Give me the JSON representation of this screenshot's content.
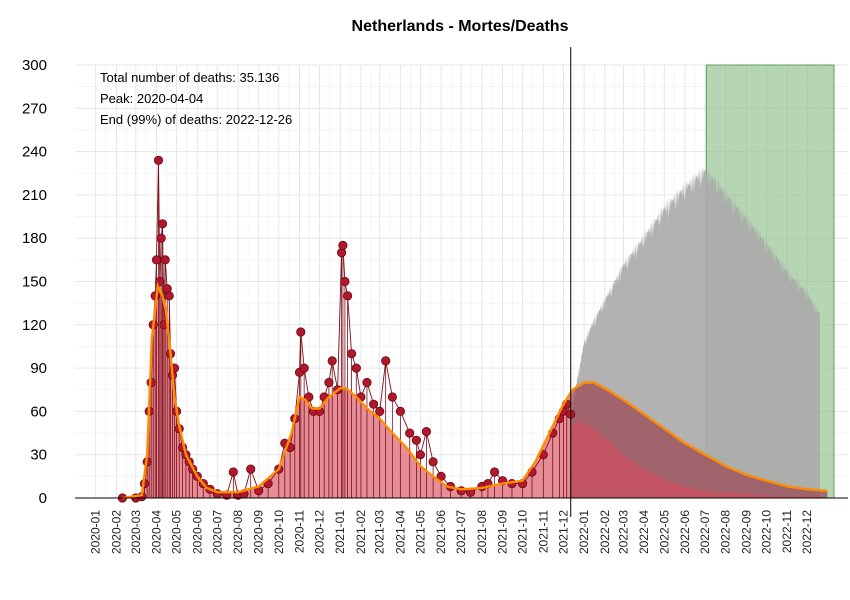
{
  "chart_data": {
    "type": "bar",
    "title": "Netherlands - Mortes/Deaths",
    "xlabel": "",
    "ylabel": "",
    "ylim": [
      0,
      300
    ],
    "yticks": [
      "0",
      "30",
      "60",
      "90",
      "120",
      "150",
      "180",
      "210",
      "240",
      "270",
      "300"
    ],
    "xticks": [
      "2020-01",
      "2020-02",
      "2020-03",
      "2020-04",
      "2020-05",
      "2020-06",
      "2020-07",
      "2020-08",
      "2020-09",
      "2020-10",
      "2020-11",
      "2020-12",
      "2021-01",
      "2021-02",
      "2021-03",
      "2021-04",
      "2021-05",
      "2021-06",
      "2021-07",
      "2021-08",
      "2021-09",
      "2021-10",
      "2021-11",
      "2021-12",
      "2022-01",
      "2022-02",
      "2022-03",
      "2022-04",
      "2022-05",
      "2022-06",
      "2022-07",
      "2022-08",
      "2022-09",
      "2022-10",
      "2022-11",
      "2022-12"
    ],
    "x_domain": [
      "2019-12-01",
      "2023-01-31"
    ],
    "grid": true,
    "annotations": [
      {
        "text": "Total number of deaths: 35.136",
        "color": "#000000"
      },
      {
        "text": "Peak: 2020-04-04",
        "color": "#b2182b"
      },
      {
        "text": "End (99%) of deaths: 2022-12-26",
        "color": "#6aa86a"
      }
    ],
    "today": "2021-12-12",
    "end_region": {
      "start": "2022-07-03",
      "end": "2023-01-10",
      "color": "#8fbf8a"
    },
    "observed_daily_deaths": {
      "color": "#b2182b",
      "points": [
        [
          "2020-02-10",
          0
        ],
        [
          "2020-03-01",
          0
        ],
        [
          "2020-03-10",
          1
        ],
        [
          "2020-03-14",
          10
        ],
        [
          "2020-03-18",
          25
        ],
        [
          "2020-03-21",
          60
        ],
        [
          "2020-03-24",
          80
        ],
        [
          "2020-03-27",
          120
        ],
        [
          "2020-03-30",
          140
        ],
        [
          "2020-04-01",
          165
        ],
        [
          "2020-04-04",
          234
        ],
        [
          "2020-04-06",
          150
        ],
        [
          "2020-04-08",
          180
        ],
        [
          "2020-04-10",
          190
        ],
        [
          "2020-04-12",
          120
        ],
        [
          "2020-04-14",
          165
        ],
        [
          "2020-04-17",
          145
        ],
        [
          "2020-04-20",
          140
        ],
        [
          "2020-04-22",
          100
        ],
        [
          "2020-04-25",
          85
        ],
        [
          "2020-04-28",
          90
        ],
        [
          "2020-05-01",
          60
        ],
        [
          "2020-05-05",
          48
        ],
        [
          "2020-05-10",
          35
        ],
        [
          "2020-05-15",
          30
        ],
        [
          "2020-05-20",
          25
        ],
        [
          "2020-05-25",
          20
        ],
        [
          "2020-06-01",
          15
        ],
        [
          "2020-06-10",
          10
        ],
        [
          "2020-06-20",
          6
        ],
        [
          "2020-07-01",
          3
        ],
        [
          "2020-07-15",
          2
        ],
        [
          "2020-07-25",
          18
        ],
        [
          "2020-08-01",
          2
        ],
        [
          "2020-08-10",
          3
        ],
        [
          "2020-08-20",
          20
        ],
        [
          "2020-09-01",
          5
        ],
        [
          "2020-09-15",
          10
        ],
        [
          "2020-10-01",
          20
        ],
        [
          "2020-10-10",
          38
        ],
        [
          "2020-10-18",
          35
        ],
        [
          "2020-10-25",
          55
        ],
        [
          "2020-11-01",
          87
        ],
        [
          "2020-11-03",
          115
        ],
        [
          "2020-11-08",
          90
        ],
        [
          "2020-11-15",
          70
        ],
        [
          "2020-11-22",
          60
        ],
        [
          "2020-12-01",
          60
        ],
        [
          "2020-12-08",
          70
        ],
        [
          "2020-12-15",
          80
        ],
        [
          "2020-12-20",
          95
        ],
        [
          "2020-12-28",
          75
        ],
        [
          "2021-01-03",
          170
        ],
        [
          "2021-01-05",
          175
        ],
        [
          "2021-01-08",
          150
        ],
        [
          "2021-01-12",
          140
        ],
        [
          "2021-01-18",
          100
        ],
        [
          "2021-01-25",
          90
        ],
        [
          "2021-02-01",
          70
        ],
        [
          "2021-02-10",
          80
        ],
        [
          "2021-02-20",
          65
        ],
        [
          "2021-03-01",
          60
        ],
        [
          "2021-03-10",
          95
        ],
        [
          "2021-03-20",
          70
        ],
        [
          "2021-04-01",
          60
        ],
        [
          "2021-04-15",
          45
        ],
        [
          "2021-04-25",
          40
        ],
        [
          "2021-05-01",
          30
        ],
        [
          "2021-05-10",
          46
        ],
        [
          "2021-05-20",
          25
        ],
        [
          "2021-06-01",
          15
        ],
        [
          "2021-06-15",
          8
        ],
        [
          "2021-07-01",
          5
        ],
        [
          "2021-07-15",
          4
        ],
        [
          "2021-08-01",
          8
        ],
        [
          "2021-08-10",
          10
        ],
        [
          "2021-08-20",
          18
        ],
        [
          "2021-09-01",
          12
        ],
        [
          "2021-09-15",
          10
        ],
        [
          "2021-10-01",
          10
        ],
        [
          "2021-10-15",
          18
        ],
        [
          "2021-11-01",
          30
        ],
        [
          "2021-11-15",
          45
        ],
        [
          "2021-11-25",
          55
        ],
        [
          "2021-12-01",
          60
        ],
        [
          "2021-12-06",
          65
        ],
        [
          "2021-12-12",
          58
        ]
      ]
    },
    "smoothed_trend": {
      "color": "#ff8c00",
      "points": [
        [
          "2020-02-10",
          0
        ],
        [
          "2020-03-10",
          2
        ],
        [
          "2020-03-18",
          30
        ],
        [
          "2020-03-25",
          110
        ],
        [
          "2020-04-03",
          147
        ],
        [
          "2020-04-10",
          140
        ],
        [
          "2020-04-15",
          130
        ],
        [
          "2020-04-22",
          100
        ],
        [
          "2020-04-28",
          70
        ],
        [
          "2020-05-05",
          50
        ],
        [
          "2020-05-15",
          30
        ],
        [
          "2020-06-01",
          15
        ],
        [
          "2020-06-15",
          7
        ],
        [
          "2020-07-01",
          4
        ],
        [
          "2020-08-01",
          4
        ],
        [
          "2020-09-01",
          8
        ],
        [
          "2020-10-01",
          20
        ],
        [
          "2020-10-20",
          45
        ],
        [
          "2020-11-01",
          70
        ],
        [
          "2020-11-10",
          68
        ],
        [
          "2020-11-20",
          62
        ],
        [
          "2020-12-01",
          62
        ],
        [
          "2020-12-15",
          70
        ],
        [
          "2021-01-01",
          76
        ],
        [
          "2021-01-10",
          76
        ],
        [
          "2021-01-25",
          70
        ],
        [
          "2021-02-10",
          62
        ],
        [
          "2021-03-01",
          55
        ],
        [
          "2021-03-20",
          45
        ],
        [
          "2021-04-10",
          35
        ],
        [
          "2021-05-01",
          22
        ],
        [
          "2021-05-20",
          15
        ],
        [
          "2021-06-10",
          8
        ],
        [
          "2021-07-01",
          6
        ],
        [
          "2021-08-01",
          7
        ],
        [
          "2021-09-01",
          10
        ],
        [
          "2021-10-01",
          12
        ],
        [
          "2021-10-20",
          25
        ],
        [
          "2021-11-10",
          45
        ],
        [
          "2021-12-01",
          65
        ],
        [
          "2021-12-15",
          75
        ],
        [
          "2022-01-01",
          80
        ],
        [
          "2022-01-15",
          80
        ],
        [
          "2022-02-01",
          76
        ],
        [
          "2022-03-01",
          68
        ],
        [
          "2022-04-01",
          58
        ],
        [
          "2022-05-01",
          48
        ],
        [
          "2022-06-01",
          38
        ],
        [
          "2022-07-01",
          30
        ],
        [
          "2022-08-01",
          22
        ],
        [
          "2022-09-01",
          16
        ],
        [
          "2022-10-01",
          12
        ],
        [
          "2022-11-01",
          8
        ],
        [
          "2022-12-01",
          6
        ],
        [
          "2022-12-31",
          5
        ]
      ]
    },
    "projected_upper": {
      "color": "#aaaaaa",
      "points": [
        [
          "2021-12-12",
          58
        ],
        [
          "2021-12-20",
          80
        ],
        [
          "2022-01-01",
          110
        ],
        [
          "2022-01-15",
          125
        ],
        [
          "2022-02-01",
          140
        ],
        [
          "2022-03-01",
          165
        ],
        [
          "2022-04-01",
          185
        ],
        [
          "2022-05-01",
          205
        ],
        [
          "2022-06-01",
          220
        ],
        [
          "2022-06-20",
          228
        ],
        [
          "2022-07-01",
          232
        ],
        [
          "2022-07-15",
          225
        ],
        [
          "2022-08-01",
          215
        ],
        [
          "2022-09-01",
          198
        ],
        [
          "2022-10-01",
          180
        ],
        [
          "2022-11-01",
          160
        ],
        [
          "2022-12-01",
          145
        ],
        [
          "2022-12-20",
          130
        ]
      ]
    },
    "projected_lower": {
      "color": "#c85060",
      "points": [
        [
          "2021-12-12",
          50
        ],
        [
          "2021-12-25",
          54
        ],
        [
          "2022-01-15",
          48
        ],
        [
          "2022-02-01",
          42
        ],
        [
          "2022-03-01",
          30
        ],
        [
          "2022-04-01",
          20
        ],
        [
          "2022-05-01",
          13
        ],
        [
          "2022-06-01",
          8
        ],
        [
          "2022-07-01",
          5
        ],
        [
          "2022-08-01",
          4
        ],
        [
          "2022-09-01",
          3
        ],
        [
          "2022-10-01",
          2
        ],
        [
          "2022-11-01",
          1
        ],
        [
          "2022-12-20",
          1
        ]
      ]
    }
  }
}
